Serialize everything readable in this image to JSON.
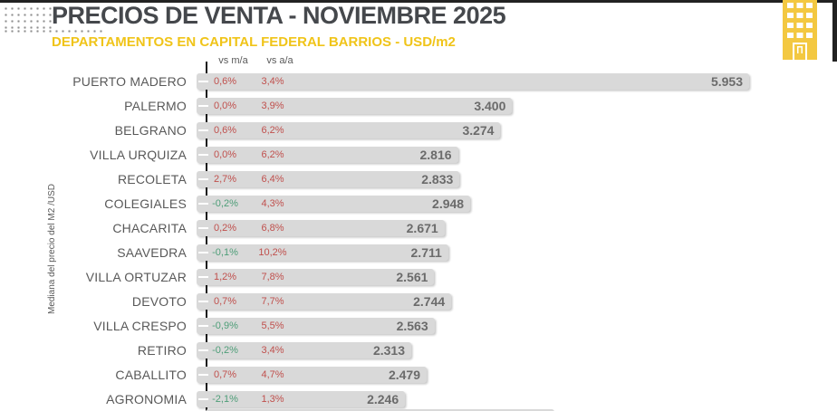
{
  "header": {
    "title": "PRECIOS DE VENTA - NOVIEMBRE 2025",
    "subtitle": "DEPARTAMENTOS EN CAPITAL FEDERAL BARRIOS - USD/m2"
  },
  "chart_data": {
    "type": "bar",
    "orientation": "horizontal",
    "title": "PRECIOS DE VENTA - NOVIEMBRE 2025",
    "subtitle": "DEPARTAMENTOS EN CAPITAL FEDERAL BARRIOS - USD/m2",
    "ylabel": "Mediana del precio del M2 /USD",
    "xlabel": "",
    "column_headers": [
      "vs m/a",
      "vs a/a"
    ],
    "xmax": 5953,
    "grid": false,
    "legend": false,
    "next_bar_cut_off_at_bottom": true,
    "rows": [
      {
        "label": "PUERTO MADERO",
        "vs_ma": "0,6%",
        "vs_aa": "3,4%",
        "value": 5953,
        "display": "5.953"
      },
      {
        "label": "PALERMO",
        "vs_ma": "0,0%",
        "vs_aa": "3,9%",
        "value": 3400,
        "display": "3.400"
      },
      {
        "label": "BELGRANO",
        "vs_ma": "0,6%",
        "vs_aa": "6,2%",
        "value": 3274,
        "display": "3.274"
      },
      {
        "label": "VILLA URQUIZA",
        "vs_ma": "0,0%",
        "vs_aa": "6,2%",
        "value": 2816,
        "display": "2.816"
      },
      {
        "label": "RECOLETA",
        "vs_ma": "2,7%",
        "vs_aa": "6,4%",
        "value": 2833,
        "display": "2.833"
      },
      {
        "label": "COLEGIALES",
        "vs_ma": "-0,2%",
        "vs_aa": "4,3%",
        "value": 2948,
        "display": "2.948"
      },
      {
        "label": "CHACARITA",
        "vs_ma": "0,2%",
        "vs_aa": "6,8%",
        "value": 2671,
        "display": "2.671"
      },
      {
        "label": "SAAVEDRA",
        "vs_ma": "-0,1%",
        "vs_aa": "10,2%",
        "value": 2711,
        "display": "2.711"
      },
      {
        "label": "VILLA ORTUZAR",
        "vs_ma": "1,2%",
        "vs_aa": "7,8%",
        "value": 2561,
        "display": "2.561"
      },
      {
        "label": "DEVOTO",
        "vs_ma": "0,7%",
        "vs_aa": "7,7%",
        "value": 2744,
        "display": "2.744"
      },
      {
        "label": "VILLA CRESPO",
        "vs_ma": "-0,9%",
        "vs_aa": "5,5%",
        "value": 2563,
        "display": "2.563"
      },
      {
        "label": "RETIRO",
        "vs_ma": "-0,2%",
        "vs_aa": "3,4%",
        "value": 2313,
        "display": "2.313"
      },
      {
        "label": "CABALLITO",
        "vs_ma": "0,7%",
        "vs_aa": "4,7%",
        "value": 2479,
        "display": "2.479"
      },
      {
        "label": "AGRONOMIA",
        "vs_ma": "-2,1%",
        "vs_aa": "1,3%",
        "value": 2246,
        "display": "2.246"
      }
    ]
  },
  "icons": {
    "building": "building-icon",
    "dots_pattern": "dots-decoration"
  },
  "theme": {
    "title_color": "#45484c",
    "yellow_text": "#f0c419",
    "building_yellow": "#f3c841",
    "bar_gray": "#d9d9d9",
    "text_gray": "#595959",
    "pct_positive_red": "#c0504d",
    "pct_negative_green": "#4e9e78",
    "axis_black": "#161616"
  }
}
